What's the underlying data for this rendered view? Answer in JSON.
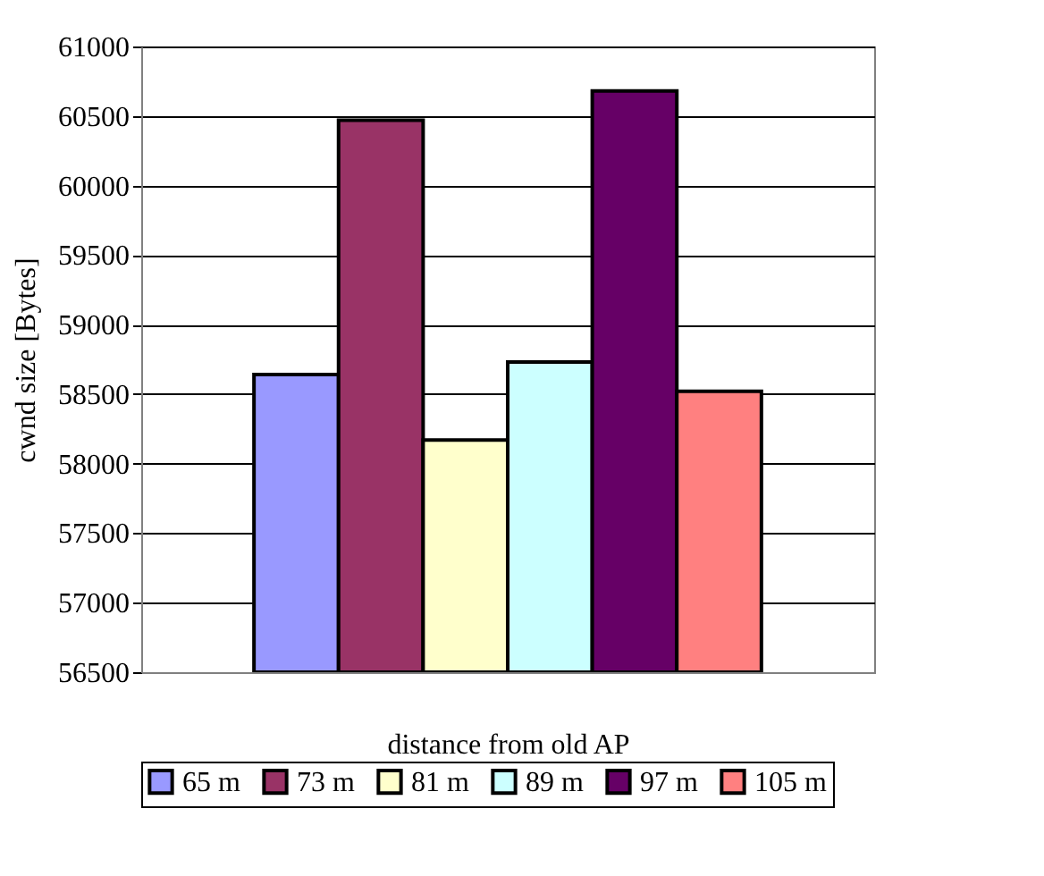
{
  "chart_data": {
    "type": "bar",
    "xlabel": "distance from old AP",
    "ylabel": "cwnd size [Bytes]",
    "categories": [
      null
    ],
    "series": [
      {
        "name": "65 m",
        "color": "#9999ff",
        "values": [
          58640
        ]
      },
      {
        "name": "73 m",
        "color": "#993366",
        "values": [
          60470
        ]
      },
      {
        "name": "81 m",
        "color": "#ffffcc",
        "values": [
          58170
        ]
      },
      {
        "name": "89 m",
        "color": "#ccffff",
        "values": [
          58730
        ]
      },
      {
        "name": "97 m",
        "color": "#660066",
        "values": [
          60680
        ]
      },
      {
        "name": "105 m",
        "color": "#ff8080",
        "values": [
          58520
        ]
      }
    ],
    "ylim": [
      56500,
      61000
    ],
    "yticks": [
      56500,
      57000,
      57500,
      58000,
      58500,
      59000,
      59500,
      60000,
      60500,
      61000
    ],
    "grid": "y",
    "legend": "bottom"
  }
}
